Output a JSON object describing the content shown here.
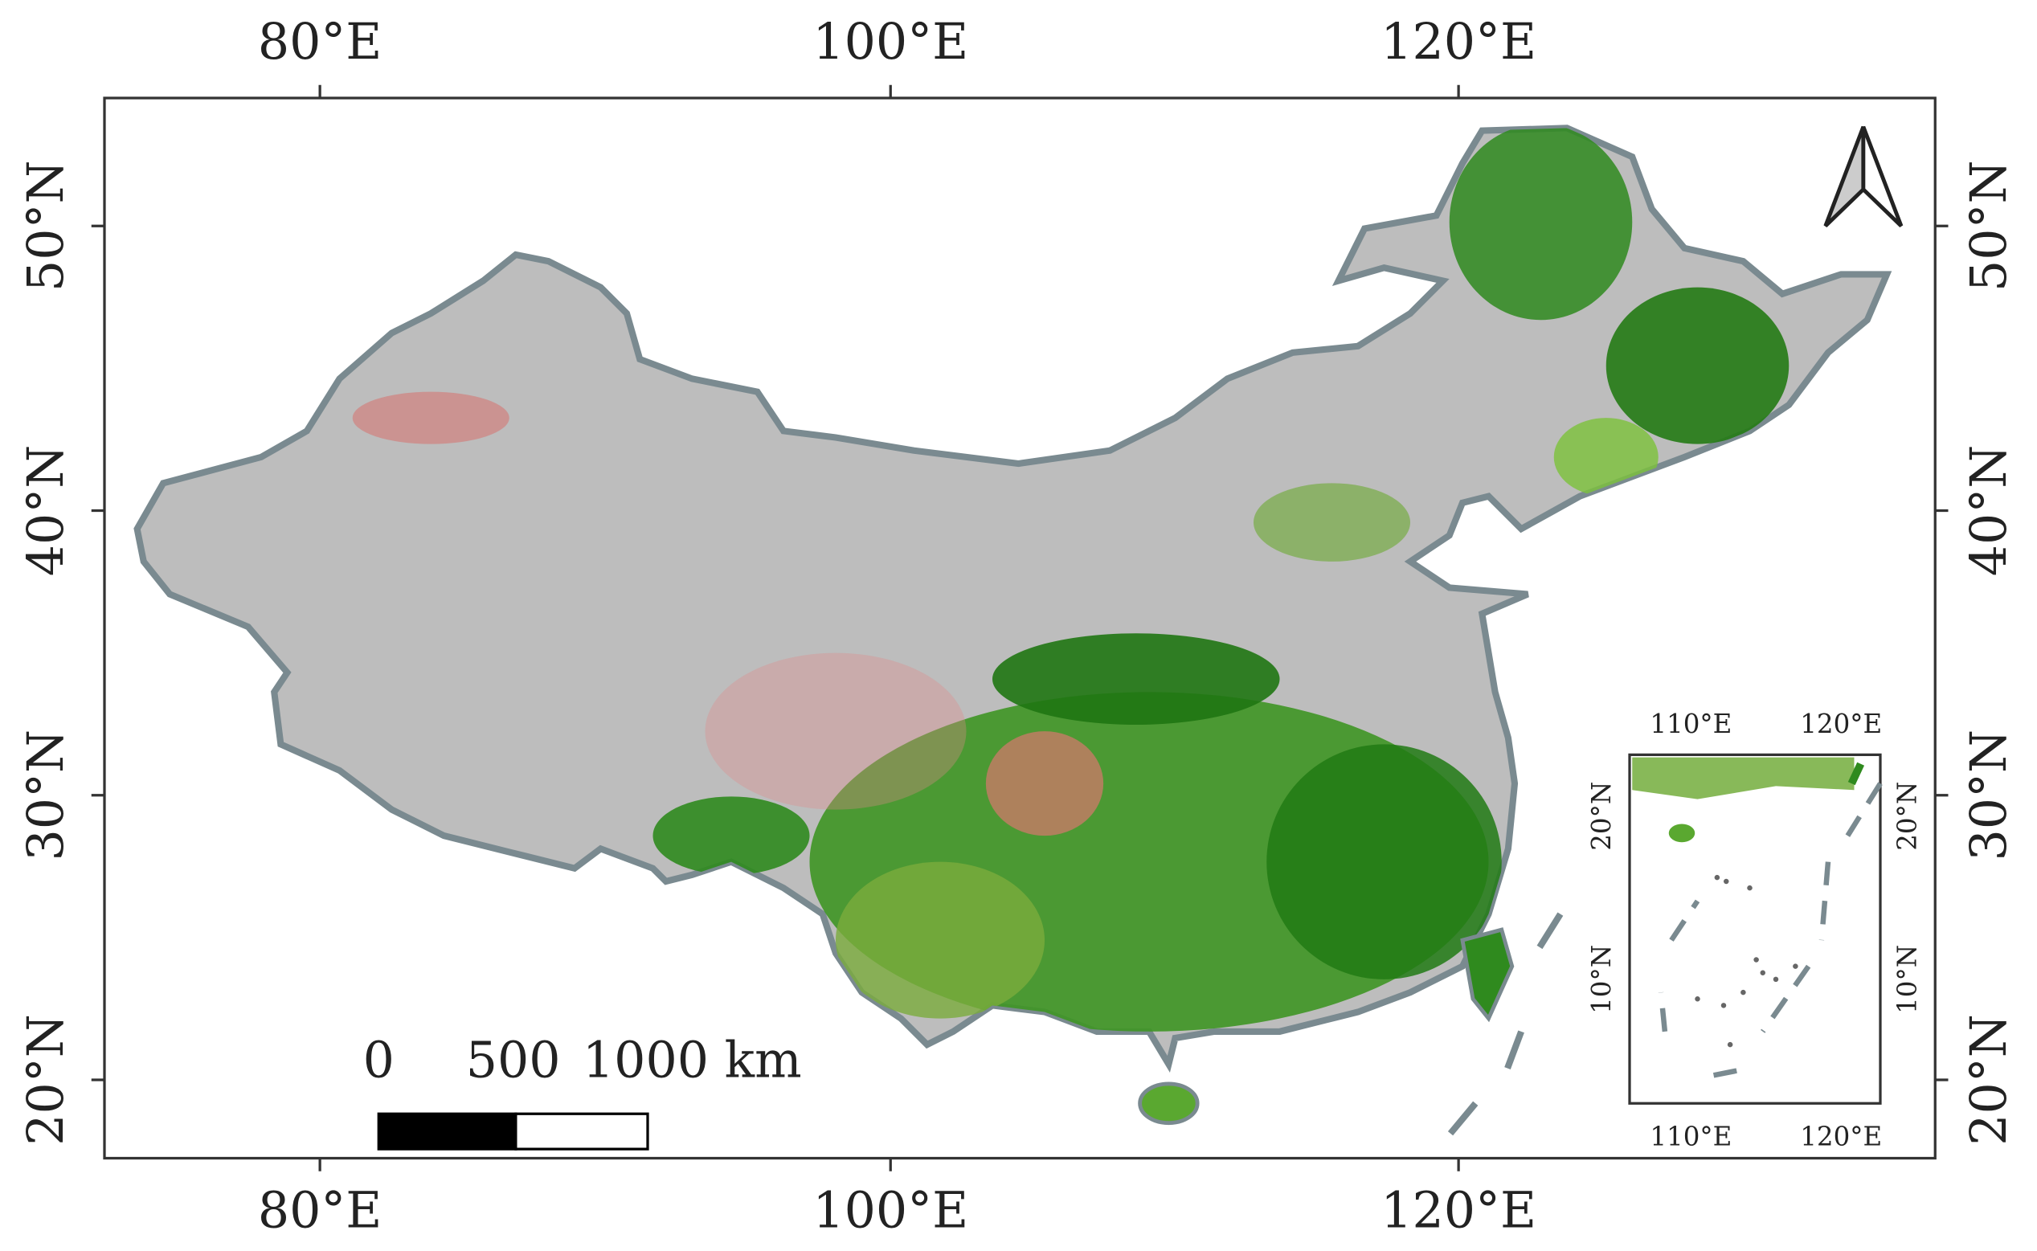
{
  "map": {
    "lon_labels": [
      "80°E",
      "100°E",
      "120°E"
    ],
    "lat_labels": [
      "50°N",
      "40°N",
      "30°N",
      "20°N"
    ],
    "scale_bar": {
      "labels": [
        "0",
        "500",
        "1000 km"
      ]
    },
    "inset": {
      "lon_labels": [
        "110°E",
        "120°E"
      ],
      "lat_labels": [
        "20°N",
        "10°N"
      ]
    }
  }
}
